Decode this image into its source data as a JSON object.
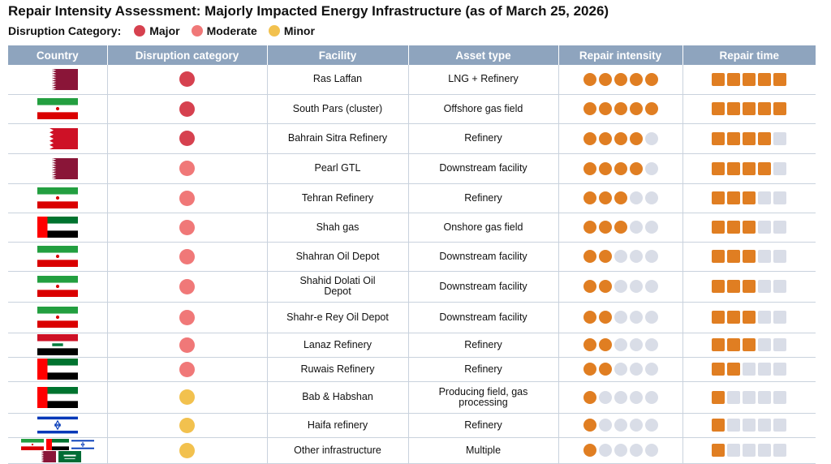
{
  "title": "Repair Intensity Assessment: Majorly Impacted Energy Infrastructure (as of March 25, 2026)",
  "legend": {
    "label": "Disruption Category:",
    "items": [
      {
        "name": "Major",
        "color": "#d6414f"
      },
      {
        "name": "Moderate",
        "color": "#f07878"
      },
      {
        "name": "Minor",
        "color": "#f2c14e"
      }
    ]
  },
  "columns": [
    "Country",
    "Disruption category",
    "Facility",
    "Asset type",
    "Repair intensity",
    "Repair time"
  ],
  "colors": {
    "filled": "#e07e22",
    "empty": "#d9dde7",
    "header": "#8ea4be"
  },
  "chart_data": {
    "type": "table",
    "scale_max": 5,
    "rows": [
      {
        "flags": [
          "qatar"
        ],
        "category": "Major",
        "facility": "Ras Laffan",
        "asset": "LNG + Refinery",
        "intensity": 5,
        "time": 5
      },
      {
        "flags": [
          "iran"
        ],
        "category": "Major",
        "facility": "South Pars (cluster)",
        "asset": "Offshore gas field",
        "intensity": 5,
        "time": 5
      },
      {
        "flags": [
          "bahrain"
        ],
        "category": "Major",
        "facility": "Bahrain Sitra Refinery",
        "asset": "Refinery",
        "intensity": 4,
        "time": 4
      },
      {
        "flags": [
          "qatar"
        ],
        "category": "Moderate",
        "facility": "Pearl GTL",
        "asset": "Downstream facility",
        "intensity": 4,
        "time": 4
      },
      {
        "flags": [
          "iran"
        ],
        "category": "Moderate",
        "facility": "Tehran Refinery",
        "asset": "Refinery",
        "intensity": 3,
        "time": 3
      },
      {
        "flags": [
          "uae"
        ],
        "category": "Moderate",
        "facility": "Shah gas",
        "asset": "Onshore gas field",
        "intensity": 3,
        "time": 3
      },
      {
        "flags": [
          "iran"
        ],
        "category": "Moderate",
        "facility": "Shahran Oil Depot",
        "asset": "Downstream facility",
        "intensity": 2,
        "time": 3
      },
      {
        "flags": [
          "iran"
        ],
        "category": "Moderate",
        "facility": "Shahid Dolati Oil Depot",
        "asset": "Downstream facility",
        "intensity": 2,
        "time": 3
      },
      {
        "flags": [
          "iran"
        ],
        "category": "Moderate",
        "facility": "Shahr-e Rey Oil Depot",
        "asset": "Downstream facility",
        "intensity": 2,
        "time": 3
      },
      {
        "flags": [
          "iraq"
        ],
        "category": "Moderate",
        "facility": "Lanaz Refinery",
        "asset": "Refinery",
        "intensity": 2,
        "time": 3
      },
      {
        "flags": [
          "uae"
        ],
        "category": "Moderate",
        "facility": "Ruwais Refinery",
        "asset": "Refinery",
        "intensity": 2,
        "time": 2
      },
      {
        "flags": [
          "uae"
        ],
        "category": "Minor",
        "facility": "Bab & Habshan",
        "asset": "Producing field, gas processing",
        "intensity": 1,
        "time": 1
      },
      {
        "flags": [
          "israel"
        ],
        "category": "Minor",
        "facility": "Haifa refinery",
        "asset": "Refinery",
        "intensity": 1,
        "time": 1
      },
      {
        "flags": [
          "iran",
          "uae",
          "israel",
          "qatar",
          "saudi"
        ],
        "category": "Minor",
        "facility": "Other infrastructure",
        "asset": "Multiple",
        "intensity": 1,
        "time": 1
      }
    ]
  }
}
